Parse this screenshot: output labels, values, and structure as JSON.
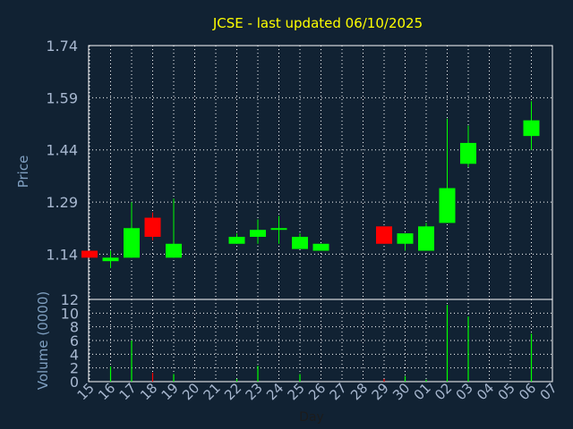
{
  "chart_data": [
    {
      "type": "candlestick",
      "title": "JCSE - last updated 06/10/2025",
      "ylabel": "Price",
      "xlabel": "Day",
      "ylim": [
        1.01,
        1.74
      ],
      "yticks": [
        "1.74",
        "1.59",
        "1.44",
        "1.29",
        "1.14"
      ],
      "grid": true,
      "colors": {
        "up": "#00ff00",
        "down": "#ff0000",
        "background": "#112233",
        "grid": "#ffffff",
        "title": "#ffff00"
      },
      "categories": [
        "15",
        "16",
        "17",
        "18",
        "19",
        "20",
        "21",
        "22",
        "23",
        "24",
        "25",
        "26",
        "27",
        "28",
        "29",
        "30",
        "01",
        "02",
        "03",
        "04",
        "05",
        "06",
        "07"
      ],
      "candles": [
        {
          "day": "15",
          "open": 1.15,
          "high": 1.15,
          "low": 1.13,
          "close": 1.13
        },
        {
          "day": "16",
          "open": 1.12,
          "high": 1.15,
          "low": 1.1,
          "close": 1.13
        },
        {
          "day": "17",
          "open": 1.13,
          "high": 1.29,
          "low": 1.13,
          "close": 1.215
        },
        {
          "day": "18",
          "open": 1.245,
          "high": 1.26,
          "low": 1.18,
          "close": 1.19
        },
        {
          "day": "19",
          "open": 1.13,
          "high": 1.3,
          "low": 1.13,
          "close": 1.17
        },
        {
          "day": "22",
          "open": 1.17,
          "high": 1.2,
          "low": 1.17,
          "close": 1.19
        },
        {
          "day": "23",
          "open": 1.19,
          "high": 1.24,
          "low": 1.17,
          "close": 1.21
        },
        {
          "day": "24",
          "open": 1.21,
          "high": 1.25,
          "low": 1.17,
          "close": 1.215
        },
        {
          "day": "25",
          "open": 1.155,
          "high": 1.2,
          "low": 1.155,
          "close": 1.19
        },
        {
          "day": "26",
          "open": 1.15,
          "high": 1.17,
          "low": 1.15,
          "close": 1.17
        },
        {
          "day": "29",
          "open": 1.22,
          "high": 1.22,
          "low": 1.17,
          "close": 1.17
        },
        {
          "day": "30",
          "open": 1.17,
          "high": 1.2,
          "low": 1.15,
          "close": 1.2
        },
        {
          "day": "01",
          "open": 1.15,
          "high": 1.23,
          "low": 1.15,
          "close": 1.22
        },
        {
          "day": "02",
          "open": 1.23,
          "high": 1.53,
          "low": 1.23,
          "close": 1.33
        },
        {
          "day": "03",
          "open": 1.4,
          "high": 1.51,
          "low": 1.39,
          "close": 1.46
        },
        {
          "day": "06",
          "open": 1.48,
          "high": 1.58,
          "low": 1.44,
          "close": 1.525
        }
      ]
    },
    {
      "type": "bar",
      "ylabel": "Volume (0000)",
      "ylim": [
        0,
        12
      ],
      "yticks": [
        "12",
        "10",
        "8",
        "6",
        "4",
        "2",
        "0"
      ],
      "categories": [
        "15",
        "16",
        "17",
        "18",
        "19",
        "20",
        "21",
        "22",
        "23",
        "24",
        "25",
        "26",
        "27",
        "28",
        "29",
        "30",
        "01",
        "02",
        "03",
        "04",
        "05",
        "06",
        "07"
      ],
      "values": [
        0,
        2.2,
        6.0,
        1.3,
        1.1,
        0,
        0,
        0.4,
        2.3,
        0,
        1.1,
        0,
        0,
        0,
        0.4,
        0.8,
        0.3,
        11.2,
        9.5,
        0,
        0,
        7.0,
        0
      ],
      "bar_colors": [
        "#00ff00",
        "#00ff00",
        "#00ff00",
        "#ff0000",
        "#00ff00",
        "#00ff00",
        "#00ff00",
        "#00ff00",
        "#00ff00",
        "#00ff00",
        "#00ff00",
        "#00ff00",
        "#00ff00",
        "#00ff00",
        "#ff0000",
        "#00ff00",
        "#00ff00",
        "#00ff00",
        "#00ff00",
        "#00ff00",
        "#00ff00",
        "#00ff00",
        "#00ff00"
      ]
    }
  ]
}
